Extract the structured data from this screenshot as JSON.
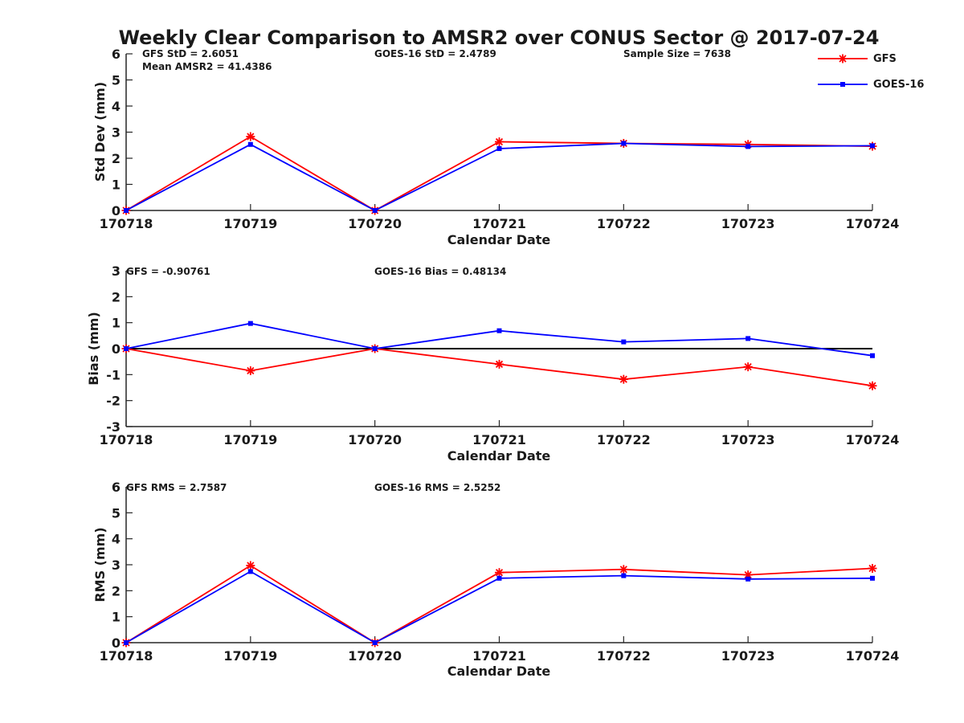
{
  "figure": {
    "title": "Weekly Clear Comparison to AMSR2 over CONUS Sector @ 2017-07-24"
  },
  "legend": {
    "entries": [
      {
        "label": "GFS",
        "color": "#ff0000",
        "marker": "asterisk"
      },
      {
        "label": "GOES-16",
        "color": "#0000ff",
        "marker": "square"
      }
    ]
  },
  "chart_data": [
    {
      "type": "line",
      "id": "stddev",
      "title": "Weekly Clear Comparison to AMSR2 over CONUS Sector @ 2017-07-24",
      "xlabel": "Calendar Date",
      "ylabel": "Std Dev (mm)",
      "categories": [
        "170718",
        "170719",
        "170720",
        "170721",
        "170722",
        "170723",
        "170724"
      ],
      "ylim": [
        0,
        6
      ],
      "yticks": [
        0,
        1,
        2,
        3,
        4,
        5,
        6
      ],
      "zero_line": false,
      "series": [
        {
          "name": "GFS",
          "color": "#ff0000",
          "values": [
            0,
            2.83,
            0,
            2.63,
            2.57,
            2.53,
            2.46
          ]
        },
        {
          "name": "GOES-16",
          "color": "#0000ff",
          "values": [
            0,
            2.53,
            0,
            2.37,
            2.57,
            2.45,
            2.48
          ]
        }
      ],
      "annotations": [
        "GFS StD = 2.6051",
        "Mean AMSR2 = 41.4386",
        "GOES-16 StD = 2.4789",
        "Sample Size = 7638"
      ]
    },
    {
      "type": "line",
      "id": "bias",
      "title": "",
      "xlabel": "Calendar Date",
      "ylabel": "Bias (mm)",
      "categories": [
        "170718",
        "170719",
        "170720",
        "170721",
        "170722",
        "170723",
        "170724"
      ],
      "ylim": [
        -3,
        3
      ],
      "yticks": [
        -3,
        -2,
        -1,
        0,
        1,
        2,
        3
      ],
      "zero_line": true,
      "series": [
        {
          "name": "GFS",
          "color": "#ff0000",
          "values": [
            0,
            -0.85,
            0,
            -0.6,
            -1.18,
            -0.7,
            -1.43
          ]
        },
        {
          "name": "GOES-16",
          "color": "#0000ff",
          "values": [
            0,
            0.97,
            0,
            0.69,
            0.26,
            0.39,
            -0.27
          ]
        }
      ],
      "annotations": [
        "GFS = -0.90761",
        "GOES-16 Bias  = 0.48134"
      ]
    },
    {
      "type": "line",
      "id": "rms",
      "title": "",
      "xlabel": "Calendar Date",
      "ylabel": "RMS (mm)",
      "categories": [
        "170718",
        "170719",
        "170720",
        "170721",
        "170722",
        "170723",
        "170724"
      ],
      "ylim": [
        0,
        6
      ],
      "yticks": [
        0,
        1,
        2,
        3,
        4,
        5,
        6
      ],
      "zero_line": false,
      "series": [
        {
          "name": "GFS",
          "color": "#ff0000",
          "values": [
            0,
            2.97,
            0,
            2.7,
            2.82,
            2.61,
            2.86
          ]
        },
        {
          "name": "GOES-16",
          "color": "#0000ff",
          "values": [
            0,
            2.74,
            0,
            2.48,
            2.58,
            2.45,
            2.48
          ]
        }
      ],
      "annotations": [
        "GFS RMS = 2.7587",
        "GOES-16 RMS = 2.5252"
      ]
    }
  ]
}
